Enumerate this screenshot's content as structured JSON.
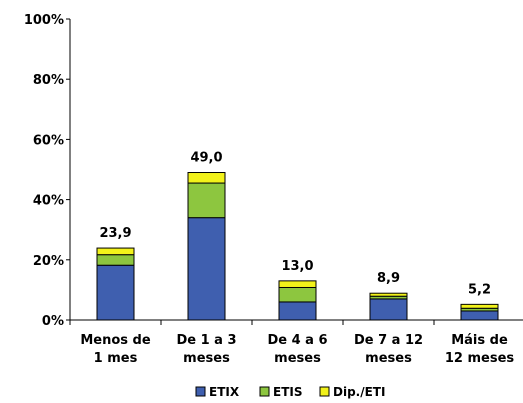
{
  "chart_data": {
    "type": "bar",
    "stacked": true,
    "categories": [
      [
        "Menos de",
        "1 mes"
      ],
      [
        "De 1 a 3",
        "meses"
      ],
      [
        "De 4 a 6",
        "meses"
      ],
      [
        "De 7 a 12",
        "meses"
      ],
      [
        "Máis de",
        "12 meses"
      ]
    ],
    "series": [
      {
        "name": "ETIX",
        "color": "#3F5FAF",
        "values": [
          18.2,
          34.0,
          6.0,
          7.0,
          3.0
        ]
      },
      {
        "name": "ETIS",
        "color": "#8DC63F",
        "values": [
          3.5,
          11.5,
          4.8,
          0.9,
          0.9
        ]
      },
      {
        "name": "Dip./ETI",
        "color": "#F2F21A",
        "values": [
          2.2,
          3.5,
          2.2,
          1.0,
          1.3
        ]
      }
    ],
    "totals": [
      "23,9",
      "49,0",
      "13,0",
      "8,9",
      "5,2"
    ],
    "yticks": [
      "0%",
      "20%",
      "40%",
      "60%",
      "80%",
      "100%"
    ],
    "ylim": [
      0,
      100
    ],
    "legend_position": "bottom",
    "grid": false
  }
}
